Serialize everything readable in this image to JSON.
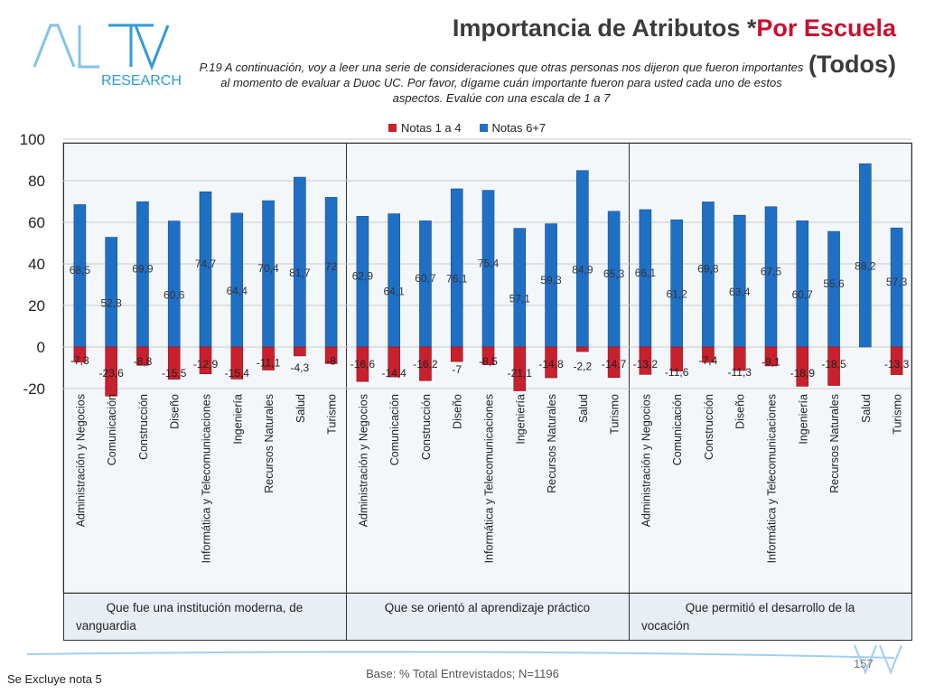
{
  "header": {
    "title_main": "Importancia de Atributos *",
    "title_accent": "Por Escuela",
    "subtitle": "(Todos)",
    "question": "P.19 A continuación, voy a leer una serie de consideraciones que otras personas nos dijeron que fueron importantes al momento de evaluar a Duoc UC. Por favor, dígame cuán importante fueron para usted cada uno de estos aspectos. Evalúe con una escala de 1 a 7"
  },
  "logo": {
    "text": "ACTIVA",
    "sub": "RESEARCH"
  },
  "footer": {
    "base": "Base: % Total Entrevistados; N=1196",
    "note": "Se Excluye nota 5",
    "page": "157"
  },
  "colors": {
    "blue": "#1f6fc5",
    "red": "#c8202c",
    "accent": "#c8102e"
  },
  "chart_data": {
    "type": "bar",
    "ylim": [
      -20,
      100
    ],
    "yticks": [
      -20,
      0,
      20,
      40,
      60,
      80,
      100
    ],
    "categories": [
      "Administración y Negocios",
      "Comunicación",
      "Construcción",
      "Diseño",
      "Informática y Telecomunicaciones",
      "Ingeniería",
      "Recursos Naturales",
      "Salud",
      "Turismo"
    ],
    "legend": {
      "placement": "top",
      "labels": [
        "Notas 1 a 4",
        "Notas 6+7"
      ]
    },
    "groups": [
      {
        "label": "Que fue una institución moderna, de vanguardia",
        "series": [
          {
            "name": "Notas 1 a 4",
            "values": [
              -7.3,
              -23.6,
              -8.8,
              -15.5,
              -12.9,
              -15.4,
              -11.1,
              -4.3,
              -8
            ]
          },
          {
            "name": "Notas 6+7",
            "values": [
              68.5,
              52.8,
              69.9,
              60.6,
              74.7,
              64.4,
              70.4,
              81.7,
              72
            ]
          }
        ]
      },
      {
        "label": "Que se orientó al aprendizaje práctico",
        "series": [
          {
            "name": "Notas 1 a 4",
            "values": [
              -16.6,
              -14.4,
              -16.2,
              -7,
              -8.5,
              -21.1,
              -14.8,
              -2.2,
              -14.7
            ]
          },
          {
            "name": "Notas 6+7",
            "values": [
              62.9,
              64.1,
              60.7,
              76.1,
              75.4,
              57.1,
              59.3,
              84.9,
              65.3
            ]
          }
        ]
      },
      {
        "label": "Que permitió el desarrollo de la vocación",
        "series": [
          {
            "name": "Notas 1 a 4",
            "values": [
              -13.2,
              -11.6,
              -7.4,
              -11.3,
              -9.1,
              -18.9,
              -18.5,
              null,
              -13.3
            ]
          },
          {
            "name": "Notas 6+7",
            "values": [
              66.1,
              61.2,
              69.8,
              63.4,
              67.5,
              60.7,
              55.6,
              88.2,
              57.3
            ]
          }
        ]
      }
    ]
  }
}
